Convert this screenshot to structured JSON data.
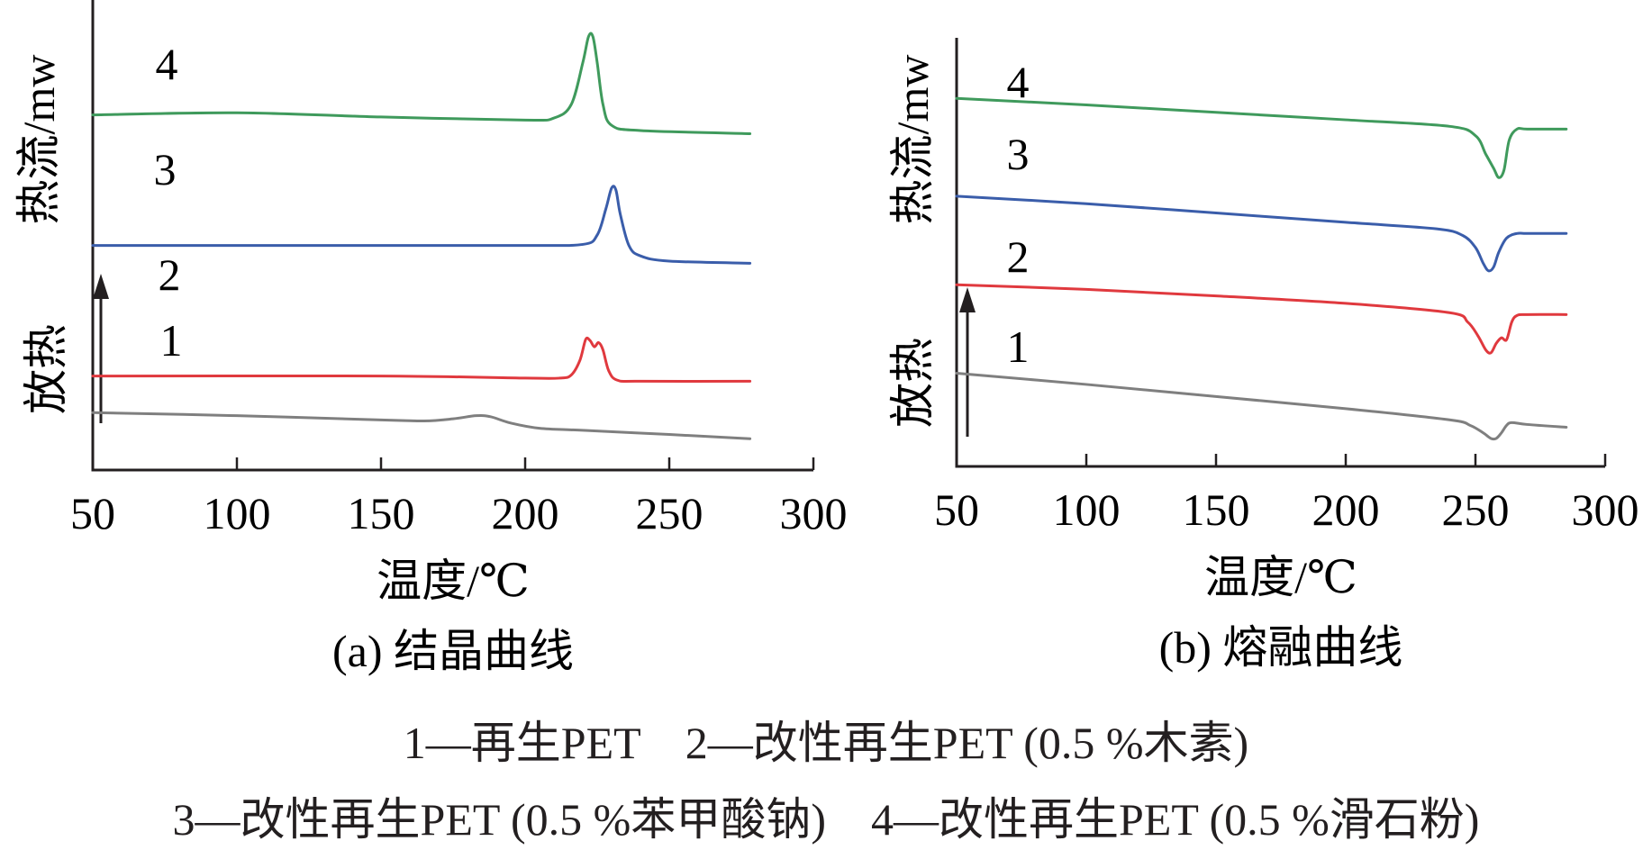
{
  "chart_data": [
    {
      "type": "line",
      "caption": "(a) 结晶曲线",
      "xlabel": "温度/℃",
      "ylabel": "热流/mw",
      "exo_label": "放热",
      "xlim": [
        50,
        300
      ],
      "xticks": [
        50,
        100,
        150,
        200,
        250,
        300
      ],
      "series": [
        {
          "name": "1",
          "color": "#7f7f7f",
          "x": [
            50,
            100,
            150,
            165,
            175,
            183,
            188,
            195,
            205,
            220,
            250,
            278
          ],
          "y": [
            0.95,
            0.92,
            0.88,
            0.87,
            0.89,
            0.92,
            0.91,
            0.85,
            0.8,
            0.78,
            0.74,
            0.7
          ]
        },
        {
          "name": "2",
          "color": "#e0393e",
          "x": [
            50,
            150,
            200,
            212,
            216,
            219,
            221,
            222.5,
            224,
            225.5,
            227,
            229,
            232,
            240,
            278
          ],
          "y": [
            1.3,
            1.3,
            1.28,
            1.28,
            1.31,
            1.45,
            1.65,
            1.64,
            1.58,
            1.62,
            1.55,
            1.35,
            1.26,
            1.25,
            1.25
          ]
        },
        {
          "name": "3",
          "color": "#3a5daa",
          "x": [
            50,
            150,
            200,
            220,
            225,
            228,
            230,
            231.5,
            233,
            236,
            240,
            250,
            278
          ],
          "y": [
            2.55,
            2.55,
            2.55,
            2.56,
            2.65,
            2.9,
            3.1,
            3.08,
            2.85,
            2.55,
            2.45,
            2.4,
            2.38
          ]
        },
        {
          "name": "4",
          "color": "#3f9a5c",
          "x": [
            50,
            100,
            150,
            200,
            210,
            216,
            220,
            222,
            223.5,
            225,
            227,
            230,
            240,
            278
          ],
          "y": [
            3.8,
            3.82,
            3.78,
            3.75,
            3.77,
            3.9,
            4.3,
            4.55,
            4.55,
            4.3,
            3.9,
            3.7,
            3.65,
            3.62
          ]
        }
      ]
    },
    {
      "type": "line",
      "caption": "(b) 熔融曲线",
      "xlabel": "温度/℃",
      "ylabel": "热流/mw",
      "exo_label": "放热",
      "xlim": [
        50,
        300
      ],
      "xticks": [
        50,
        100,
        150,
        200,
        250,
        300
      ],
      "series": [
        {
          "name": "1",
          "color": "#7f7f7f",
          "x": [
            50,
            100,
            150,
            200,
            240,
            248,
            253,
            256,
            258,
            260,
            262,
            264,
            270,
            285
          ],
          "y": [
            1.0,
            0.88,
            0.75,
            0.62,
            0.5,
            0.44,
            0.36,
            0.3,
            0.3,
            0.36,
            0.44,
            0.47,
            0.45,
            0.42
          ]
        },
        {
          "name": "2",
          "color": "#e0393e",
          "x": [
            50,
            100,
            150,
            200,
            240,
            247,
            251,
            254,
            256,
            258,
            260,
            262,
            264,
            266,
            270,
            285
          ],
          "y": [
            1.95,
            1.9,
            1.83,
            1.75,
            1.65,
            1.55,
            1.4,
            1.25,
            1.22,
            1.32,
            1.38,
            1.36,
            1.55,
            1.62,
            1.63,
            1.63
          ]
        },
        {
          "name": "3",
          "color": "#3a5daa",
          "x": [
            50,
            100,
            150,
            200,
            235,
            245,
            250,
            253,
            255,
            257,
            259,
            262,
            266,
            270,
            285
          ],
          "y": [
            2.9,
            2.82,
            2.72,
            2.62,
            2.55,
            2.48,
            2.35,
            2.18,
            2.1,
            2.14,
            2.3,
            2.45,
            2.5,
            2.5,
            2.5
          ]
        },
        {
          "name": "4",
          "color": "#3f9a5c",
          "x": [
            50,
            100,
            150,
            200,
            240,
            250,
            254,
            257,
            259,
            261,
            263,
            266,
            270,
            285
          ],
          "y": [
            3.95,
            3.88,
            3.8,
            3.72,
            3.65,
            3.55,
            3.35,
            3.2,
            3.1,
            3.18,
            3.5,
            3.62,
            3.62,
            3.62
          ]
        }
      ]
    }
  ],
  "legend": {
    "line1": "1—再生PET    2—改性再生PET (0.5 %木素)",
    "line2": "3—改性再生PET (0.5 %苯甲酸钠)    4—改性再生PET (0.5 %滑石粉)"
  }
}
